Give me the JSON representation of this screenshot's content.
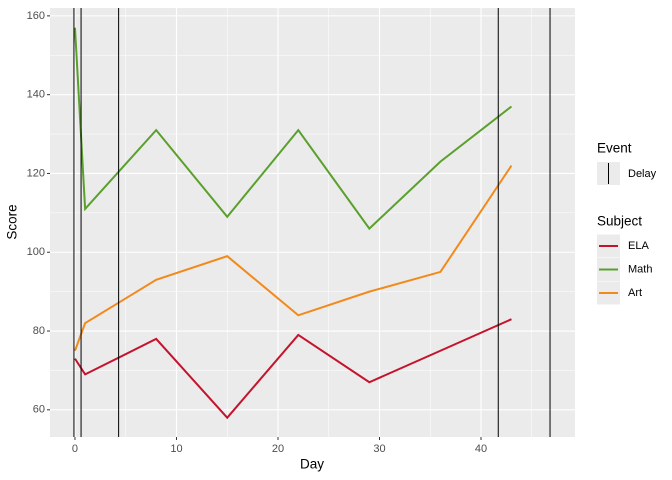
{
  "chart_data": {
    "type": "line",
    "x_label": "Day",
    "y_label": "Score",
    "x": [
      0,
      1,
      8,
      15,
      22,
      29,
      36,
      43
    ],
    "series": [
      {
        "name": "ELA",
        "color": "#c4132c",
        "values": [
          73,
          69,
          78,
          58,
          79,
          67,
          75,
          83
        ]
      },
      {
        "name": "Math",
        "color": "#5aa02c",
        "values": [
          157,
          111,
          131,
          109,
          131,
          106,
          123,
          137
        ]
      },
      {
        "name": "Art",
        "color": "#f28a1b",
        "values": [
          75,
          82,
          93,
          99,
          84,
          90,
          95,
          122
        ]
      }
    ],
    "legend_title": "Subject",
    "events": {
      "legend_title": "Event",
      "name": "Delay",
      "color": "#000000",
      "values": [
        -0.1,
        0.6,
        4.3,
        41.7,
        46.8
      ]
    },
    "xlim": [
      -2.46,
      49.26
    ],
    "ylim": [
      53.1,
      162.0
    ],
    "xticks": [
      0,
      10,
      20,
      30,
      40
    ],
    "yticks": [
      60,
      80,
      100,
      120,
      140,
      160
    ],
    "grid": true
  }
}
